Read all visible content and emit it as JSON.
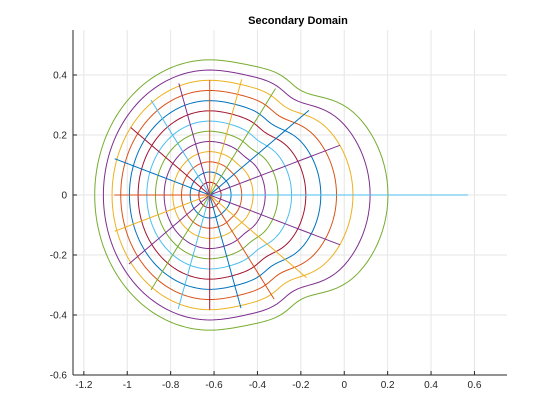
{
  "chart_data": {
    "type": "line",
    "title": "Secondary Domain",
    "xlabel": "",
    "ylabel": "",
    "xlim": [
      -1.25,
      0.75
    ],
    "ylim": [
      -0.6,
      0.55
    ],
    "grid": true,
    "legend": "none",
    "x_ticks": [
      {
        "value": -1.2,
        "label": "-1.2"
      },
      {
        "value": -1.0,
        "label": "-1"
      },
      {
        "value": -0.8,
        "label": "-0.8"
      },
      {
        "value": -0.6,
        "label": "-0.6"
      },
      {
        "value": -0.4,
        "label": "-0.4"
      },
      {
        "value": -0.2,
        "label": "-0.2"
      },
      {
        "value": 0.0,
        "label": "0"
      },
      {
        "value": 0.2,
        "label": "0.2"
      },
      {
        "value": 0.4,
        "label": "0.4"
      },
      {
        "value": 0.6,
        "label": "0.6"
      }
    ],
    "y_ticks": [
      {
        "value": 0.4,
        "label": "0.4"
      },
      {
        "value": 0.2,
        "label": "0.2"
      },
      {
        "value": 0.0,
        "label": "0"
      },
      {
        "value": -0.2,
        "label": "-0.2"
      },
      {
        "value": -0.4,
        "label": "-0.4"
      },
      {
        "value": -0.6,
        "label": "-0.6"
      }
    ],
    "colors": [
      "#0072BD",
      "#D95319",
      "#EDB120",
      "#7E2F8E",
      "#77AC30",
      "#4DBEEE",
      "#A2142F"
    ],
    "center": [
      -0.62,
      0.0
    ],
    "contours": [
      {
        "radius": 0.05,
        "color": "#A2142F"
      },
      {
        "radius": 0.09,
        "color": "#0072BD"
      },
      {
        "radius": 0.13,
        "color": "#D95319"
      },
      {
        "radius": 0.17,
        "color": "#EDB120"
      },
      {
        "radius": 0.21,
        "color": "#7E2F8E"
      },
      {
        "radius": 0.25,
        "color": "#77AC30"
      },
      {
        "radius": 0.29,
        "color": "#4DBEEE"
      },
      {
        "radius": 0.33,
        "color": "#A2142F"
      },
      {
        "radius": 0.37,
        "color": "#0072BD"
      },
      {
        "radius": 0.41,
        "color": "#D95319"
      },
      {
        "radius": 0.45,
        "color": "#EDB120"
      },
      {
        "radius": 0.49,
        "color": "#7E2F8E"
      },
      {
        "radius": 0.53,
        "color": "#77AC30"
      }
    ],
    "rays": [
      {
        "angle_deg": 0,
        "length": 1.2,
        "color": "#4DBEEE"
      },
      {
        "angle_deg": 18,
        "length": 0.45,
        "color": "#7E2F8E"
      },
      {
        "angle_deg": 36,
        "length": 0.47,
        "color": "#0072BD"
      },
      {
        "angle_deg": 54,
        "length": 0.48,
        "color": "#77AC30"
      },
      {
        "angle_deg": 72,
        "length": 0.47,
        "color": "#EDB120"
      },
      {
        "angle_deg": 90,
        "length": 0.45,
        "color": "#D95319"
      },
      {
        "angle_deg": 108,
        "length": 0.46,
        "color": "#7E2F8E"
      },
      {
        "angle_deg": 126,
        "length": 0.46,
        "color": "#4DBEEE"
      },
      {
        "angle_deg": 144,
        "length": 0.45,
        "color": "#A2142F"
      },
      {
        "angle_deg": 162,
        "length": 0.46,
        "color": "#0072BD"
      },
      {
        "angle_deg": 180,
        "length": 0.44,
        "color": "#D95319"
      },
      {
        "angle_deg": 198,
        "length": 0.46,
        "color": "#EDB120"
      },
      {
        "angle_deg": 216,
        "length": 0.46,
        "color": "#7E2F8E"
      },
      {
        "angle_deg": 234,
        "length": 0.46,
        "color": "#77AC30"
      },
      {
        "angle_deg": 252,
        "length": 0.47,
        "color": "#4DBEEE"
      },
      {
        "angle_deg": 270,
        "length": 0.45,
        "color": "#A2142F"
      },
      {
        "angle_deg": 288,
        "length": 0.46,
        "color": "#0072BD"
      },
      {
        "angle_deg": 306,
        "length": 0.47,
        "color": "#D95319"
      },
      {
        "angle_deg": 324,
        "length": 0.46,
        "color": "#EDB120"
      },
      {
        "angle_deg": 342,
        "length": 0.45,
        "color": "#7E2F8E"
      }
    ]
  }
}
